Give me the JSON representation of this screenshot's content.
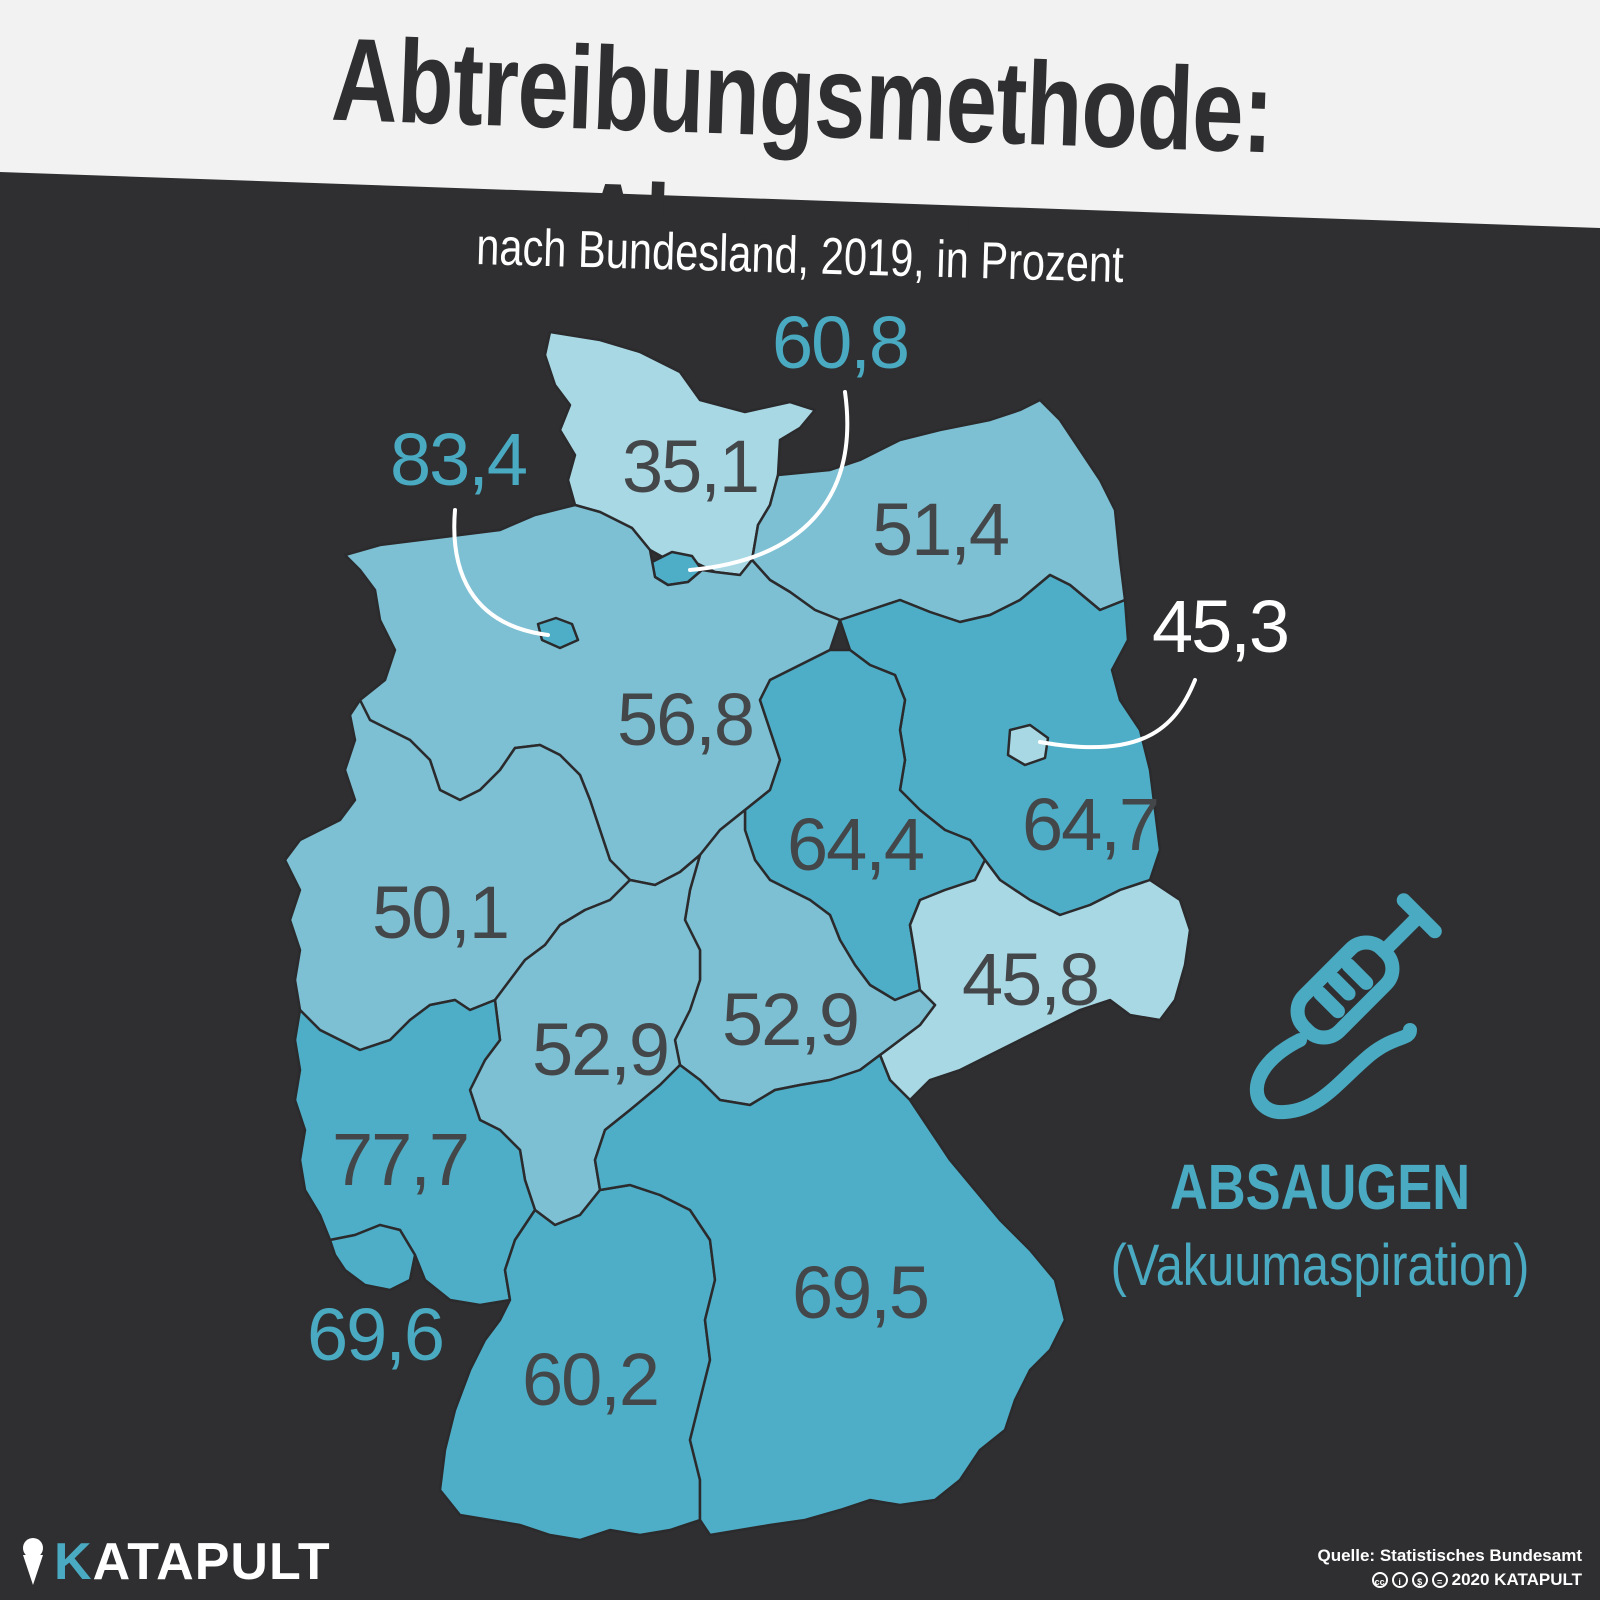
{
  "header": {
    "title": "Abtreibungsmethode: Absaugen",
    "subtitle": "nach Bundesland, 2019, in Prozent"
  },
  "map": {
    "states": [
      {
        "id": "schleswig-holstein",
        "label": "35,1"
      },
      {
        "id": "hamburg",
        "label": "60,8"
      },
      {
        "id": "mecklenburg-vorpommern",
        "label": "51,4"
      },
      {
        "id": "bremen",
        "label": "83,4"
      },
      {
        "id": "niedersachsen",
        "label": "56,8"
      },
      {
        "id": "berlin",
        "label": "45,3"
      },
      {
        "id": "brandenburg",
        "label": "64,7"
      },
      {
        "id": "sachsen-anhalt",
        "label": "64,4"
      },
      {
        "id": "nordrhein-westfalen",
        "label": "50,1"
      },
      {
        "id": "sachsen",
        "label": "45,8"
      },
      {
        "id": "hessen",
        "label": "52,9"
      },
      {
        "id": "thueringen",
        "label": "52,9"
      },
      {
        "id": "rheinland-pfalz",
        "label": "77,7"
      },
      {
        "id": "saarland",
        "label": "69,6"
      },
      {
        "id": "bayern",
        "label": "69,5"
      },
      {
        "id": "baden-wuerttemberg",
        "label": "60,2"
      }
    ],
    "colors": {
      "light": "#a9d8e5",
      "mid": "#7dc0d3",
      "dark": "#4eaec7",
      "background": "#2f2f31",
      "header": "#f2f2f2"
    }
  },
  "legend": {
    "icon": "syringe-icon",
    "title": "ABSAUGEN",
    "subtitle": "(Vakuumaspiration)"
  },
  "footer": {
    "logo_k": "K",
    "logo_rest": "ATAPULT",
    "source": "Quelle: Statistisches Bundesamt",
    "copyright": "2020 KATAPULT",
    "license_icons": [
      "cc-icon",
      "by-icon",
      "nc-icon",
      "nd-icon"
    ]
  }
}
